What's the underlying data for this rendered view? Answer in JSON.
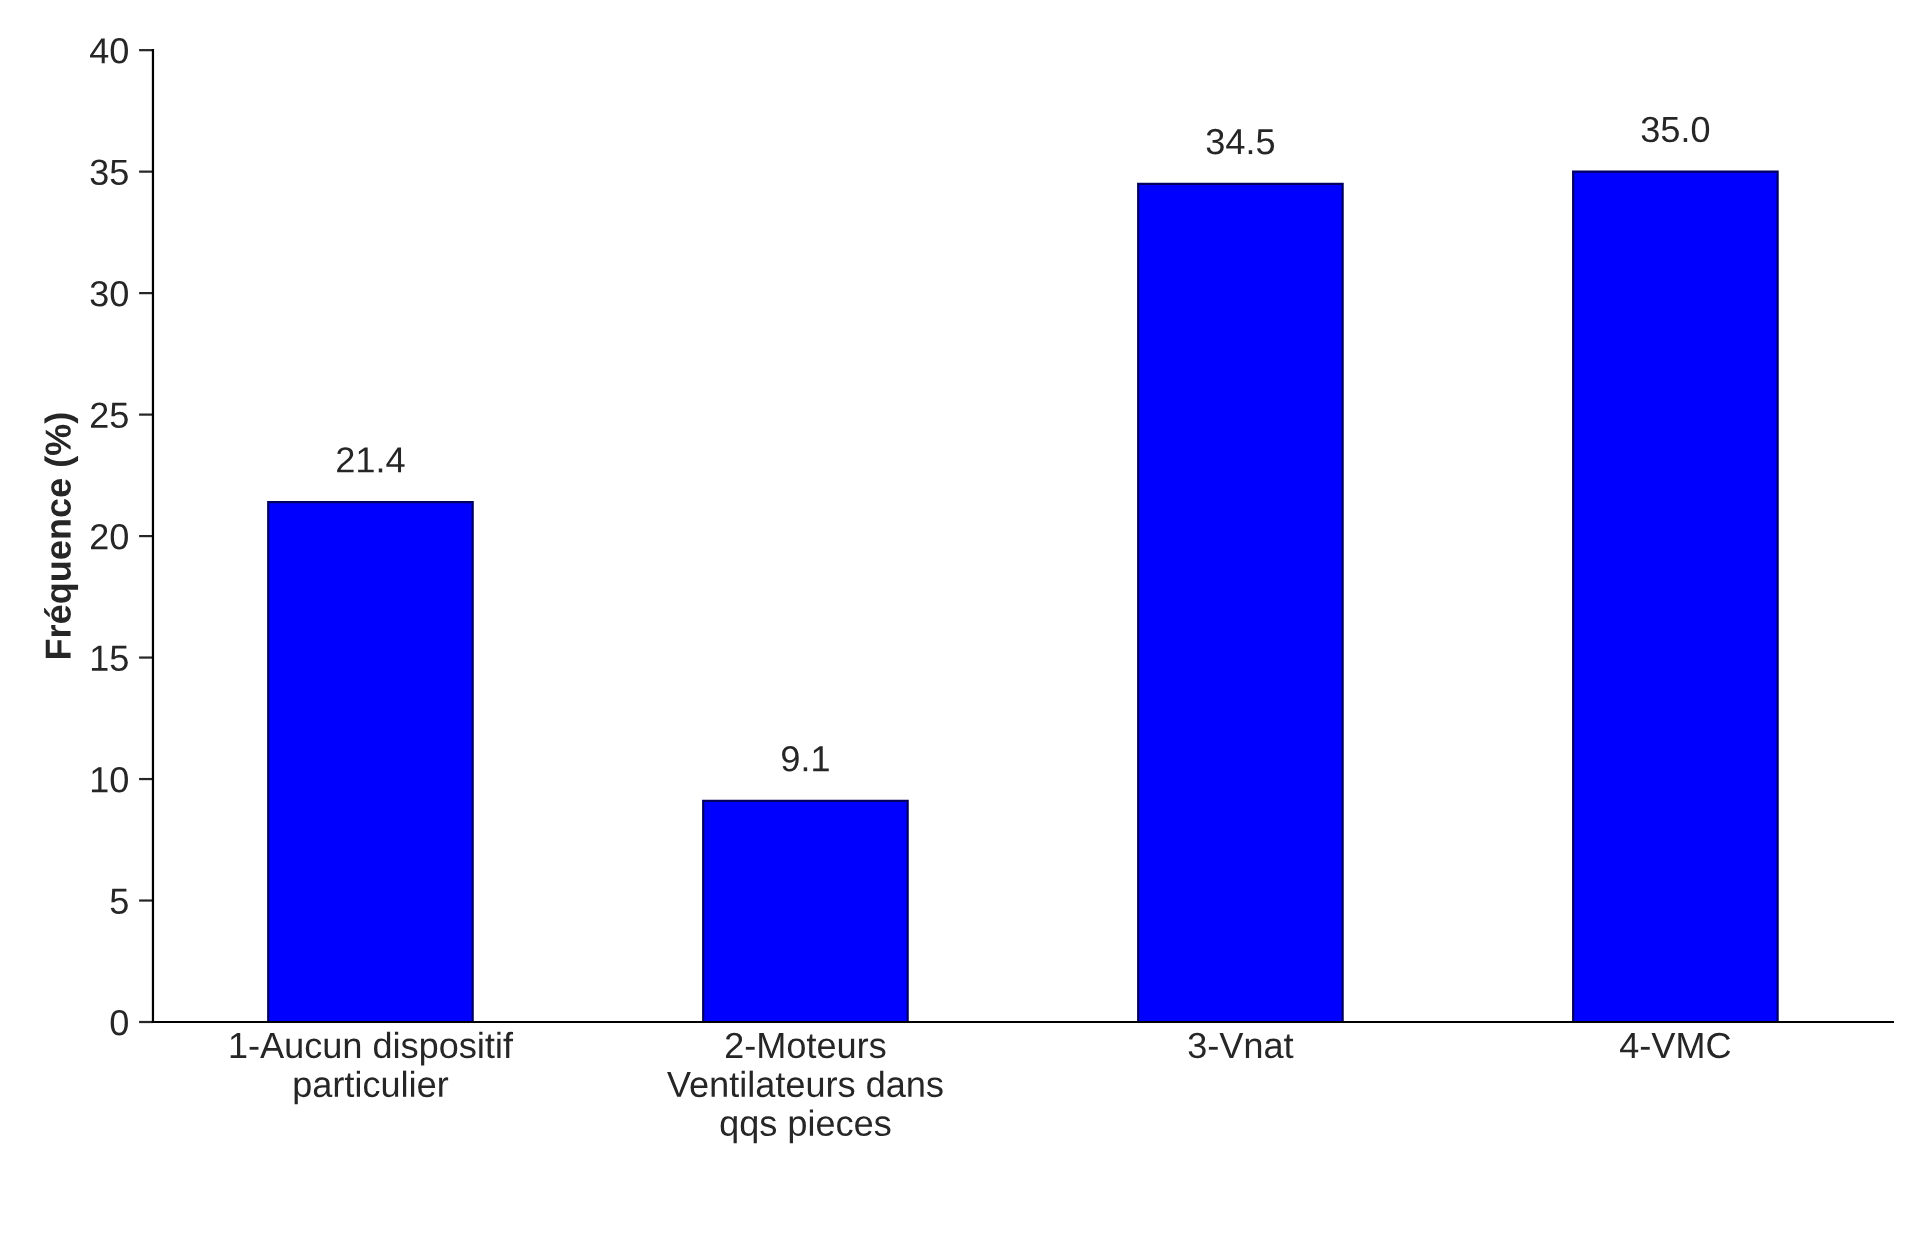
{
  "chart_data": {
    "type": "bar",
    "ylabel": "Fréquence (%)",
    "categories": [
      "1-Aucun dispositif\nparticulier",
      "2-Moteurs\nVentilateurs dans\nqqs pieces",
      "3-Vnat",
      "4-VMC"
    ],
    "values": [
      21.4,
      9.1,
      34.5,
      35.0
    ],
    "value_labels": [
      "21.4",
      "9.1",
      "34.5",
      "35.0"
    ],
    "color": "#0000ff",
    "ylim": [
      0,
      40
    ],
    "yticks": [
      0,
      5,
      10,
      15,
      20,
      25,
      30,
      35,
      40
    ],
    "grid": false,
    "legend": false
  }
}
